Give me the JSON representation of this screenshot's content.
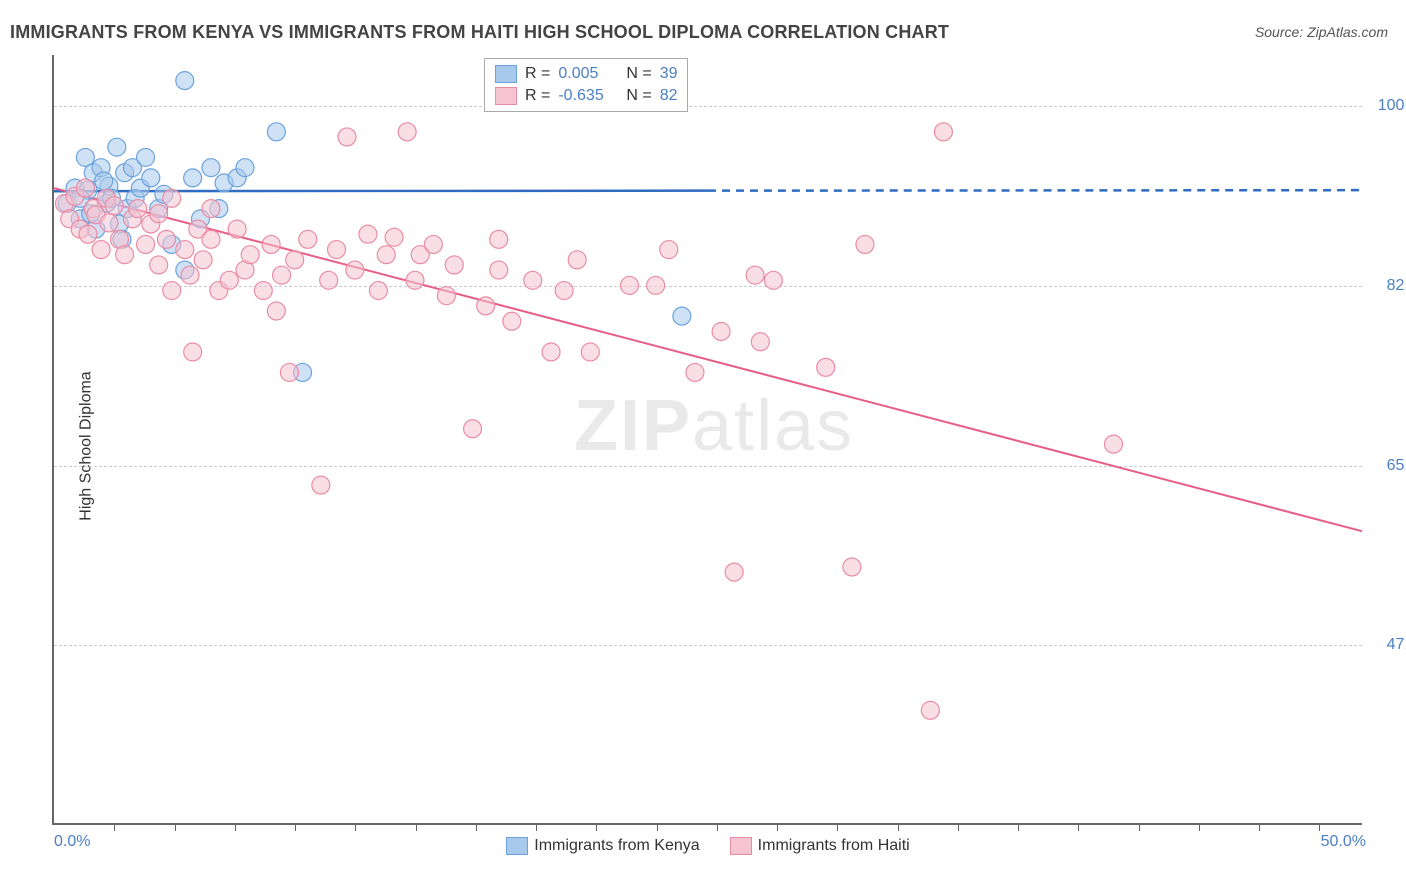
{
  "title": "IMMIGRANTS FROM KENYA VS IMMIGRANTS FROM HAITI HIGH SCHOOL DIPLOMA CORRELATION CHART",
  "source_label": "Source: ZipAtlas.com",
  "ylabel": "High School Diploma",
  "watermark_a": "ZIP",
  "watermark_b": "atlas",
  "chart": {
    "type": "scatter",
    "background_color": "#ffffff",
    "grid_color": "#cccccc",
    "grid_style": "dashed",
    "axis_color": "#666666",
    "xlim": [
      0,
      50
    ],
    "ylim": [
      30,
      105
    ],
    "x_start_label": "0.0%",
    "x_end_label": "50.0%",
    "xtick_positions": [
      2.3,
      4.6,
      6.9,
      9.2,
      11.5,
      13.8,
      16.1,
      18.4,
      20.7,
      23.0,
      25.3,
      27.6,
      29.9,
      32.2,
      34.5,
      36.8,
      39.1,
      41.4,
      43.7,
      46.0,
      48.3
    ],
    "y_gridlines": [
      47.5,
      65.0,
      82.5,
      100.0
    ],
    "y_gridline_labels": [
      "47.5%",
      "65.0%",
      "82.5%",
      "100.0%"
    ],
    "ytick_color": "#4a7fc6",
    "ytick_fontsize": 16,
    "series": [
      {
        "name": "Immigrants from Kenya",
        "color_fill": "#a8c9eb",
        "color_stroke": "#6ca3de",
        "fill_opacity": 0.55,
        "marker_radius": 9,
        "R": "0.005",
        "N": "39",
        "trend": {
          "x1": 0,
          "y1": 91.7,
          "x2_solid": 25,
          "x2": 50,
          "y2": 91.8,
          "color": "#2f6bc0",
          "width": 2.5
        },
        "points": [
          [
            0.5,
            90.5
          ],
          [
            0.8,
            92.0
          ],
          [
            1.0,
            89.0
          ],
          [
            1.2,
            95.0
          ],
          [
            1.3,
            91.8
          ],
          [
            1.5,
            93.5
          ],
          [
            1.6,
            88.0
          ],
          [
            1.8,
            94.0
          ],
          [
            2.0,
            90.5
          ],
          [
            2.1,
            92.2
          ],
          [
            2.2,
            91.0
          ],
          [
            2.4,
            96.0
          ],
          [
            2.5,
            88.5
          ],
          [
            2.7,
            93.5
          ],
          [
            2.8,
            90.0
          ],
          [
            3.0,
            94.0
          ],
          [
            3.1,
            91.0
          ],
          [
            3.3,
            92.0
          ],
          [
            3.5,
            95.0
          ],
          [
            3.7,
            93.0
          ],
          [
            4.0,
            90.0
          ],
          [
            4.2,
            91.4
          ],
          [
            4.5,
            86.5
          ],
          [
            5.0,
            102.5
          ],
          [
            5.3,
            93.0
          ],
          [
            5.6,
            89.0
          ],
          [
            6.0,
            94.0
          ],
          [
            6.3,
            90.0
          ],
          [
            6.5,
            92.5
          ],
          [
            7.0,
            93.0
          ],
          [
            7.3,
            94.0
          ],
          [
            8.5,
            97.5
          ],
          [
            9.5,
            74.0
          ],
          [
            5.0,
            84.0
          ],
          [
            24.0,
            79.5
          ],
          [
            1.0,
            91.0
          ],
          [
            1.4,
            89.5
          ],
          [
            1.9,
            92.7
          ],
          [
            2.6,
            87.0
          ]
        ]
      },
      {
        "name": "Immigrants from Haiti",
        "color_fill": "#f6c3d0",
        "color_stroke": "#ea8ca5",
        "fill_opacity": 0.55,
        "marker_radius": 9,
        "R": "-0.635",
        "N": "82",
        "trend": {
          "x1": 0,
          "y1": 92.0,
          "x2_solid": 50,
          "x2": 50,
          "y2": 58.5,
          "color": "#e85d86",
          "width": 2
        },
        "points": [
          [
            0.4,
            90.5
          ],
          [
            0.6,
            89.0
          ],
          [
            0.8,
            91.2
          ],
          [
            1.0,
            88.0
          ],
          [
            1.2,
            92.0
          ],
          [
            1.3,
            87.5
          ],
          [
            1.5,
            90.0
          ],
          [
            1.6,
            89.4
          ],
          [
            1.8,
            86.0
          ],
          [
            2.0,
            91.0
          ],
          [
            2.1,
            88.6
          ],
          [
            2.3,
            90.3
          ],
          [
            2.5,
            87.0
          ],
          [
            2.7,
            85.5
          ],
          [
            3.0,
            89.0
          ],
          [
            3.2,
            90.0
          ],
          [
            3.5,
            86.5
          ],
          [
            3.7,
            88.5
          ],
          [
            4.0,
            84.5
          ],
          [
            4.3,
            87.0
          ],
          [
            4.5,
            91.0
          ],
          [
            5.0,
            86.0
          ],
          [
            5.2,
            83.5
          ],
          [
            5.5,
            88.0
          ],
          [
            5.7,
            85.0
          ],
          [
            6.0,
            90.0
          ],
          [
            6.3,
            82.0
          ],
          [
            6.7,
            83.0
          ],
          [
            7.0,
            88.0
          ],
          [
            7.3,
            84.0
          ],
          [
            4.5,
            82.0
          ],
          [
            5.3,
            76.0
          ],
          [
            7.5,
            85.5
          ],
          [
            8.0,
            82.0
          ],
          [
            8.3,
            86.5
          ],
          [
            8.7,
            83.5
          ],
          [
            9.0,
            74.0
          ],
          [
            9.2,
            85.0
          ],
          [
            9.7,
            87.0
          ],
          [
            10.2,
            63.0
          ],
          [
            10.5,
            83.0
          ],
          [
            10.8,
            86.0
          ],
          [
            11.2,
            97.0
          ],
          [
            11.5,
            84.0
          ],
          [
            12.0,
            87.5
          ],
          [
            12.4,
            82.0
          ],
          [
            12.7,
            85.5
          ],
          [
            13.0,
            87.2
          ],
          [
            13.5,
            97.5
          ],
          [
            13.8,
            83.0
          ],
          [
            14.0,
            85.5
          ],
          [
            14.5,
            86.5
          ],
          [
            15.0,
            81.5
          ],
          [
            15.3,
            84.5
          ],
          [
            16.0,
            68.5
          ],
          [
            16.5,
            80.5
          ],
          [
            17.0,
            84.0
          ],
          [
            17.0,
            87.0
          ],
          [
            17.5,
            79.0
          ],
          [
            18.3,
            83.0
          ],
          [
            19.0,
            76.0
          ],
          [
            19.5,
            82.0
          ],
          [
            20.0,
            85.0
          ],
          [
            20.5,
            76.0
          ],
          [
            22.0,
            82.5
          ],
          [
            23.0,
            82.5
          ],
          [
            23.5,
            86.0
          ],
          [
            24.5,
            74.0
          ],
          [
            25.5,
            78.0
          ],
          [
            26.0,
            54.5
          ],
          [
            26.8,
            83.5
          ],
          [
            27.0,
            77.0
          ],
          [
            27.5,
            83.0
          ],
          [
            29.5,
            74.5
          ],
          [
            30.5,
            55.0
          ],
          [
            31.0,
            86.5
          ],
          [
            33.5,
            41.0
          ],
          [
            34.0,
            97.5
          ],
          [
            40.5,
            67.0
          ],
          [
            8.5,
            80.0
          ],
          [
            6.0,
            87.0
          ],
          [
            4.0,
            89.5
          ]
        ]
      }
    ],
    "top_legend": {
      "rows": [
        {
          "swatch_fill": "#a8c9eb",
          "swatch_stroke": "#6ca3de",
          "r_label": "R =",
          "r_value": "0.005",
          "n_label": "N =",
          "n_value": "39"
        },
        {
          "swatch_fill": "#f6c3d0",
          "swatch_stroke": "#ea8ca5",
          "r_label": "R =",
          "r_value": "-0.635",
          "n_label": "N =",
          "n_value": "82"
        }
      ],
      "value_color": "#4a7fc6",
      "label_color": "#333333"
    },
    "bottom_legend": [
      {
        "swatch_fill": "#a8c9eb",
        "swatch_stroke": "#6ca3de",
        "label": "Immigrants from Kenya"
      },
      {
        "swatch_fill": "#f6c3d0",
        "swatch_stroke": "#ea8ca5",
        "label": "Immigrants from Haiti"
      }
    ]
  }
}
